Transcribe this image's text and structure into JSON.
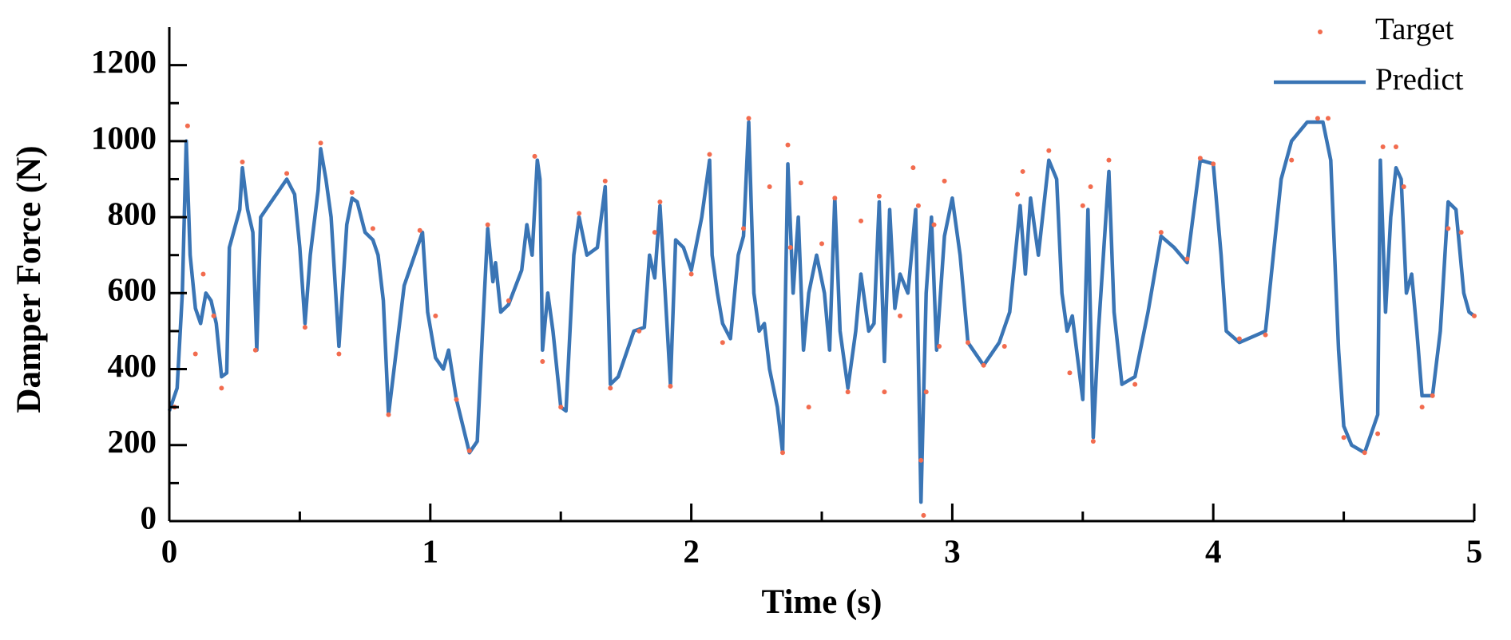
{
  "chart_data": {
    "type": "line",
    "xlabel": "Time (s)",
    "ylabel": "Damper Force (N)",
    "xlim": [
      0,
      5
    ],
    "ylim": [
      0,
      1300
    ],
    "xticks": [
      0,
      1,
      2,
      3,
      4,
      5
    ],
    "xminorticks": [
      0.5,
      1.5,
      2.5,
      3.5,
      4.5
    ],
    "yticks": [
      0,
      200,
      400,
      600,
      800,
      1000,
      1200
    ],
    "yminorticks": [
      100,
      300,
      500,
      700,
      900,
      1100
    ],
    "legend": "upper right",
    "series": [
      {
        "name": "Target",
        "style": "scatter",
        "color": "#f26c4f",
        "x": [
          0.02,
          0.07,
          0.1,
          0.13,
          0.17,
          0.2,
          0.28,
          0.33,
          0.45,
          0.52,
          0.58,
          0.65,
          0.7,
          0.78,
          0.84,
          0.96,
          1.02,
          1.1,
          1.15,
          1.22,
          1.3,
          1.4,
          1.43,
          1.5,
          1.57,
          1.67,
          1.69,
          1.8,
          1.86,
          1.88,
          1.92,
          2.0,
          2.07,
          2.12,
          2.2,
          2.22,
          2.3,
          2.35,
          2.37,
          2.38,
          2.42,
          2.45,
          2.5,
          2.55,
          2.6,
          2.65,
          2.72,
          2.74,
          2.8,
          2.85,
          2.87,
          2.88,
          2.89,
          2.9,
          2.93,
          2.95,
          2.97,
          3.06,
          3.12,
          3.2,
          3.25,
          3.27,
          3.37,
          3.45,
          3.5,
          3.53,
          3.54,
          3.6,
          3.7,
          3.8,
          3.9,
          3.95,
          4.0,
          4.1,
          4.2,
          4.3,
          4.4,
          4.44,
          4.5,
          4.58,
          4.63,
          4.65,
          4.7,
          4.73,
          4.8,
          4.84,
          4.9,
          4.95,
          5.0
        ],
        "values": [
          300,
          1040,
          440,
          650,
          540,
          350,
          945,
          450,
          915,
          510,
          995,
          440,
          865,
          770,
          280,
          765,
          540,
          320,
          185,
          780,
          580,
          960,
          420,
          300,
          810,
          895,
          350,
          500,
          760,
          840,
          355,
          650,
          965,
          470,
          770,
          1060,
          880,
          180,
          990,
          720,
          890,
          300,
          730,
          850,
          340,
          790,
          855,
          340,
          540,
          930,
          830,
          160,
          15,
          340,
          780,
          460,
          895,
          470,
          410,
          460,
          860,
          920,
          975,
          390,
          830,
          880,
          210,
          950,
          360,
          760,
          690,
          955,
          940,
          480,
          490,
          950,
          1060,
          1060,
          220,
          180,
          230,
          985,
          985,
          880,
          300,
          330,
          770,
          760,
          540
        ]
      },
      {
        "name": "Predict",
        "style": "line",
        "color": "#3a75b5",
        "x": [
          0,
          0.03,
          0.05,
          0.065,
          0.08,
          0.1,
          0.12,
          0.14,
          0.16,
          0.18,
          0.2,
          0.22,
          0.23,
          0.27,
          0.28,
          0.3,
          0.32,
          0.335,
          0.35,
          0.4,
          0.45,
          0.48,
          0.5,
          0.52,
          0.54,
          0.57,
          0.58,
          0.6,
          0.62,
          0.65,
          0.68,
          0.7,
          0.72,
          0.75,
          0.78,
          0.8,
          0.82,
          0.84,
          0.87,
          0.9,
          0.95,
          0.97,
          0.99,
          1.02,
          1.05,
          1.07,
          1.1,
          1.15,
          1.18,
          1.2,
          1.22,
          1.24,
          1.25,
          1.27,
          1.3,
          1.35,
          1.37,
          1.39,
          1.41,
          1.42,
          1.43,
          1.45,
          1.47,
          1.5,
          1.52,
          1.55,
          1.57,
          1.6,
          1.64,
          1.67,
          1.69,
          1.72,
          1.78,
          1.82,
          1.84,
          1.86,
          1.88,
          1.9,
          1.92,
          1.94,
          1.97,
          2.0,
          2.04,
          2.07,
          2.08,
          2.1,
          2.12,
          2.15,
          2.18,
          2.2,
          2.22,
          2.24,
          2.26,
          2.28,
          2.3,
          2.33,
          2.35,
          2.37,
          2.39,
          2.41,
          2.43,
          2.45,
          2.48,
          2.51,
          2.53,
          2.55,
          2.57,
          2.6,
          2.63,
          2.65,
          2.68,
          2.7,
          2.72,
          2.74,
          2.76,
          2.78,
          2.8,
          2.83,
          2.86,
          2.88,
          2.9,
          2.92,
          2.94,
          2.97,
          3.0,
          3.03,
          3.06,
          3.12,
          3.18,
          3.22,
          3.26,
          3.28,
          3.3,
          3.33,
          3.37,
          3.4,
          3.42,
          3.44,
          3.46,
          3.5,
          3.52,
          3.54,
          3.56,
          3.6,
          3.62,
          3.65,
          3.7,
          3.75,
          3.8,
          3.85,
          3.9,
          3.95,
          4.0,
          4.03,
          4.05,
          4.1,
          4.2,
          4.26,
          4.3,
          4.36,
          4.42,
          4.45,
          4.48,
          4.5,
          4.53,
          4.58,
          4.63,
          4.64,
          4.66,
          4.68,
          4.7,
          4.72,
          4.74,
          4.76,
          4.78,
          4.8,
          4.84,
          4.87,
          4.9,
          4.93,
          4.96,
          4.98,
          5.0
        ],
        "values": [
          290,
          350,
          600,
          1000,
          700,
          560,
          520,
          600,
          580,
          520,
          380,
          390,
          720,
          820,
          930,
          820,
          760,
          450,
          800,
          850,
          900,
          860,
          720,
          520,
          700,
          870,
          980,
          900,
          800,
          460,
          780,
          850,
          840,
          760,
          740,
          700,
          580,
          280,
          450,
          620,
          720,
          760,
          550,
          430,
          400,
          450,
          320,
          180,
          210,
          500,
          770,
          630,
          680,
          550,
          570,
          660,
          780,
          700,
          950,
          900,
          450,
          600,
          500,
          300,
          290,
          700,
          800,
          700,
          720,
          880,
          360,
          380,
          500,
          510,
          700,
          640,
          830,
          600,
          360,
          740,
          720,
          660,
          800,
          950,
          700,
          600,
          520,
          480,
          700,
          750,
          1050,
          600,
          500,
          520,
          400,
          300,
          180,
          940,
          600,
          800,
          450,
          600,
          700,
          600,
          450,
          850,
          500,
          350,
          500,
          650,
          500,
          520,
          840,
          420,
          820,
          560,
          650,
          600,
          820,
          50,
          600,
          800,
          450,
          750,
          850,
          700,
          470,
          410,
          470,
          550,
          830,
          650,
          850,
          700,
          950,
          900,
          600,
          500,
          540,
          320,
          820,
          220,
          500,
          920,
          550,
          360,
          380,
          550,
          750,
          720,
          680,
          950,
          940,
          700,
          500,
          470,
          500,
          900,
          1000,
          1050,
          1050,
          950,
          450,
          250,
          200,
          180,
          280,
          950,
          550,
          800,
          930,
          900,
          600,
          650,
          500,
          330,
          330,
          500,
          840,
          820,
          600,
          550,
          540
        ]
      }
    ]
  }
}
